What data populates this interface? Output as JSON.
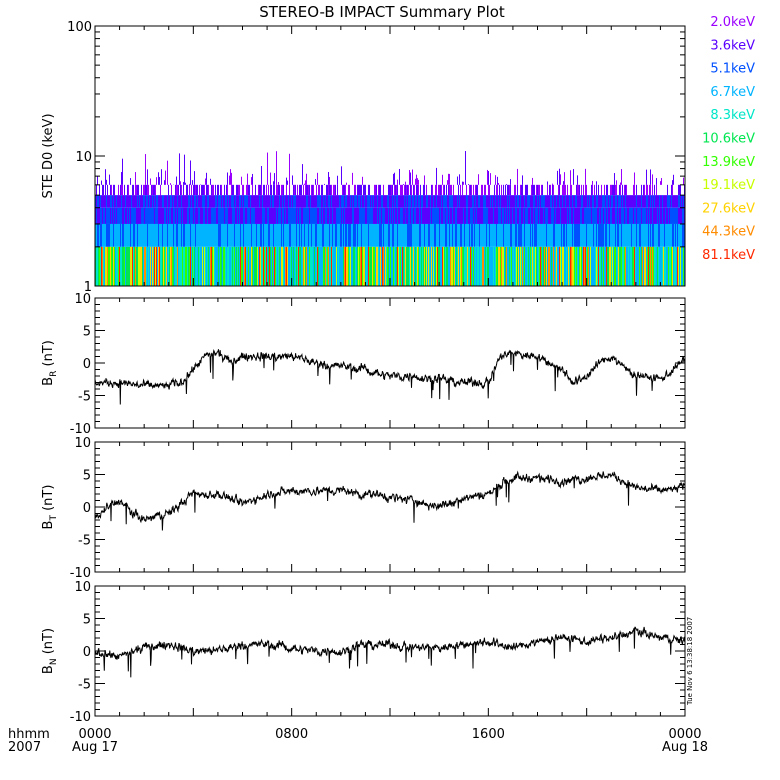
{
  "title": "STEREO-B IMPACT Summary Plot",
  "timestamp": "Tue Nov 6 13:38:18 2007",
  "time_axis": {
    "row1_label": "hhmm",
    "row2_label": "2007",
    "ticks": [
      {
        "hour": 0,
        "time": "0000",
        "date": "Aug 17"
      },
      {
        "hour": 8,
        "time": "0800",
        "date": ""
      },
      {
        "hour": 16,
        "time": "1600",
        "date": ""
      },
      {
        "hour": 24,
        "time": "0000",
        "date": "Aug 18"
      }
    ]
  },
  "colors": {
    "axis": "#000000",
    "trace": "#000000",
    "energy_channels": [
      "#9b00ff",
      "#5a00ff",
      "#0050ff",
      "#00b4ff",
      "#00e6c8",
      "#00e650",
      "#32ff00",
      "#c8ff00",
      "#ffd200",
      "#ff8c00",
      "#ff2800"
    ]
  },
  "chart_data": [
    {
      "type": "heatmap",
      "name": "energy_spectrogram",
      "ylabel": "STE D0 (keV)",
      "yscale": "log",
      "ylim": [
        1,
        100
      ],
      "yticks": [
        {
          "v": 1,
          "label": "1"
        },
        {
          "v": 10,
          "label": "10"
        },
        {
          "v": 100,
          "label": "100"
        }
      ],
      "xlim_hours": [
        0,
        24
      ],
      "legend_placement": "right",
      "channels": [
        "2.0keV",
        "3.6keV",
        "5.1keV",
        "6.7keV",
        "8.3keV",
        "10.6keV",
        "13.9keV",
        "19.1keV",
        "27.6keV",
        "44.3keV",
        "81.1keV"
      ],
      "typical_band_tops": [
        6,
        5,
        4,
        3,
        2
      ],
      "occasional_spike_max": 11
    },
    {
      "type": "line",
      "name": "B_R",
      "ylabel_base": "B",
      "ylabel_sub": "R",
      "ylabel_unit": " (nT)",
      "ylim": [
        -10,
        10
      ],
      "yticks": [
        -10,
        -5,
        0,
        5,
        10
      ],
      "xlim_hours": [
        0,
        24
      ],
      "approx_values": {
        "t_hours": [
          0,
          1,
          2,
          3,
          3.5,
          4,
          4.5,
          5,
          5.5,
          6,
          7,
          8,
          9,
          10,
          11,
          12,
          13,
          14,
          15,
          15.5,
          16,
          16.5,
          17,
          18,
          19,
          19.5,
          20,
          20.5,
          21,
          22,
          23,
          24
        ],
        "values": [
          -3,
          -3,
          -3.5,
          -3.5,
          -3,
          -1,
          1,
          1.5,
          0,
          1,
          1,
          1,
          0,
          -0.5,
          -1,
          -2,
          -2,
          -2.5,
          -3,
          -3,
          -3,
          1,
          1.5,
          1,
          -1,
          -3,
          -2,
          0,
          1,
          -2,
          -2.5,
          0.5
        ]
      }
    },
    {
      "type": "line",
      "name": "B_T",
      "ylabel_base": "B",
      "ylabel_sub": "T",
      "ylabel_unit": " (nT)",
      "ylim": [
        -10,
        10
      ],
      "yticks": [
        -10,
        -5,
        0,
        5,
        10
      ],
      "xlim_hours": [
        0,
        24
      ],
      "approx_values": {
        "t_hours": [
          0,
          0.5,
          1,
          1.5,
          2,
          3,
          4,
          5,
          6,
          7,
          8,
          9,
          10,
          11,
          12,
          13,
          14,
          15,
          16,
          16.5,
          17,
          18,
          19,
          20,
          21,
          22,
          23,
          24
        ],
        "values": [
          -2,
          0,
          1,
          -1,
          -2,
          -1,
          2,
          2,
          0.5,
          2,
          2.5,
          2.5,
          2.5,
          2,
          1.5,
          1,
          0,
          1.5,
          2,
          3.5,
          4.5,
          4.5,
          4,
          4.5,
          5,
          3,
          2.5,
          3
        ]
      }
    },
    {
      "type": "line",
      "name": "B_N",
      "ylabel_base": "B",
      "ylabel_sub": "N",
      "ylabel_unit": " (nT)",
      "ylim": [
        -10,
        10
      ],
      "yticks": [
        -10,
        -5,
        0,
        5,
        10
      ],
      "xlim_hours": [
        0,
        24
      ],
      "approx_values": {
        "t_hours": [
          0,
          1,
          2,
          3,
          4,
          5,
          6,
          7,
          8,
          9,
          10,
          11,
          12,
          13,
          14,
          15,
          16,
          17,
          18,
          19,
          20,
          21,
          22,
          23,
          24
        ],
        "values": [
          0,
          -1,
          0.5,
          1,
          0,
          0,
          1,
          1,
          0.5,
          0,
          0,
          1,
          1,
          0.5,
          0.5,
          1,
          1.5,
          0.5,
          1.5,
          2,
          1.5,
          2,
          3,
          2,
          1.5
        ]
      }
    }
  ]
}
